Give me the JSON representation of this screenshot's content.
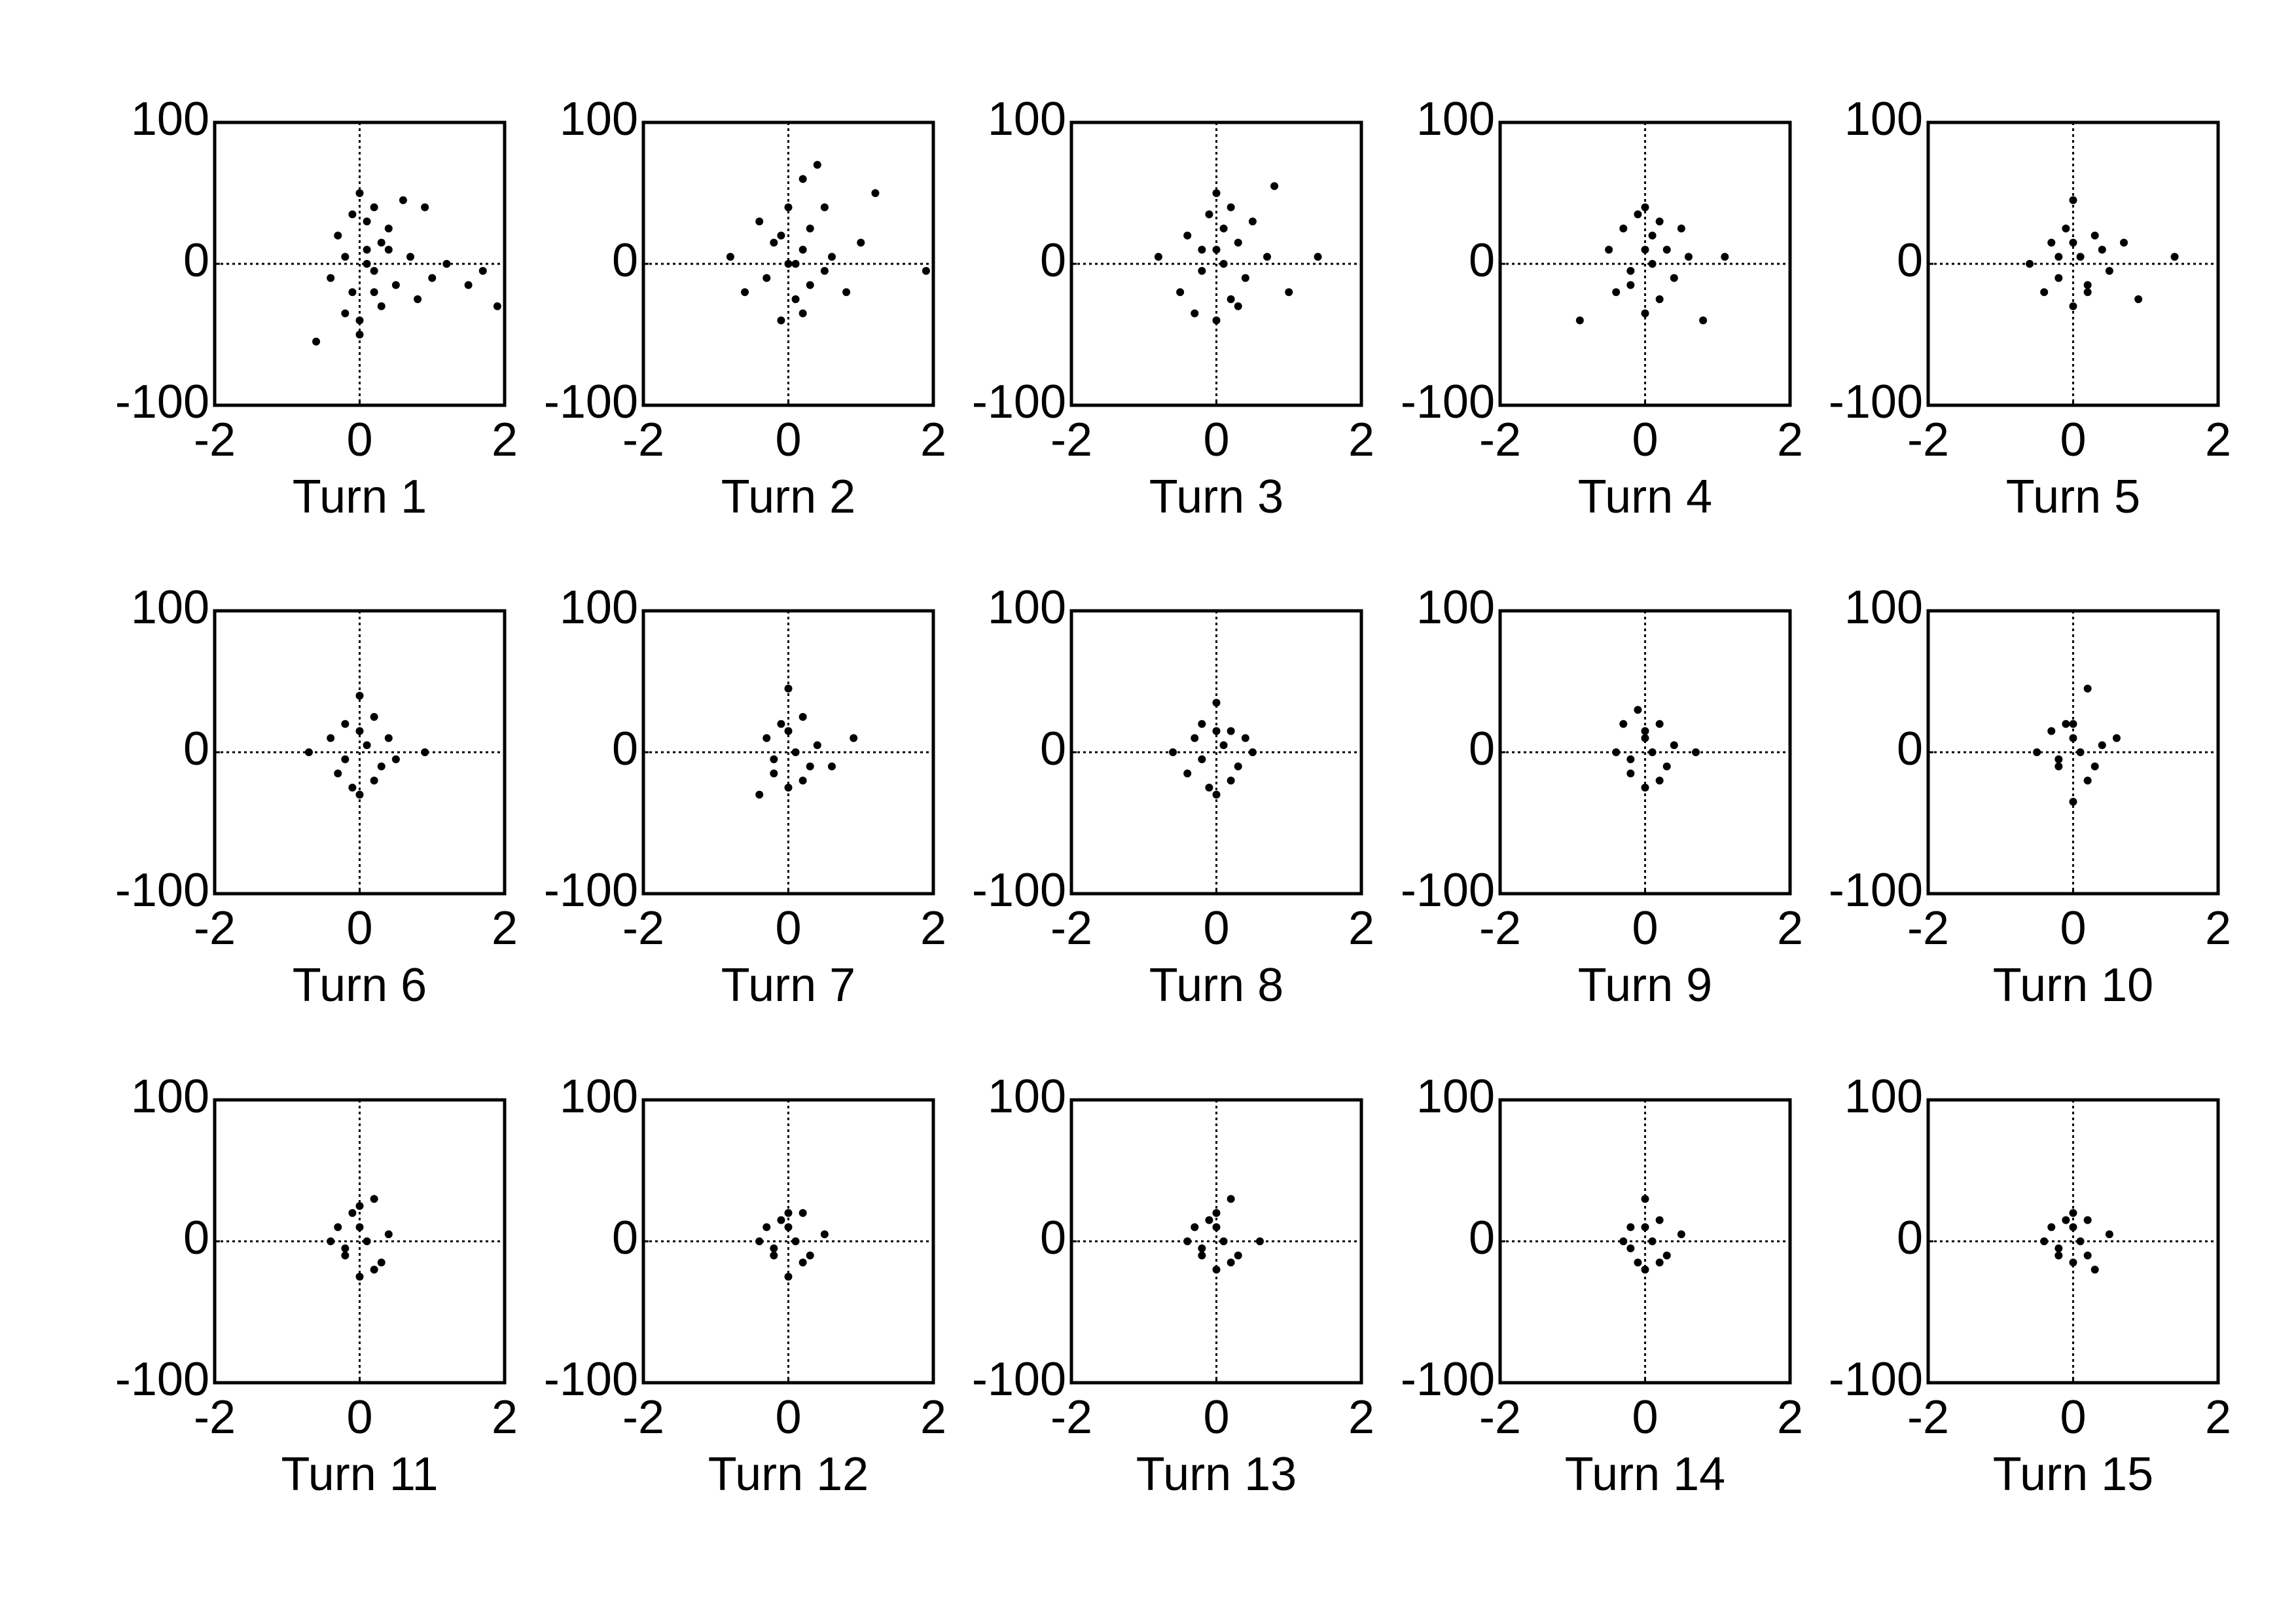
{
  "chart_data": [
    {
      "type": "scatter",
      "xlabel": "Turn 1",
      "color": "#000000",
      "zero_lines": true,
      "xlim": [
        -2,
        2
      ],
      "ylim": [
        -100,
        100
      ],
      "xticks": [
        -2,
        0,
        2
      ],
      "yticks": [
        -100,
        0,
        100
      ],
      "x": [
        -0.6,
        -0.4,
        -0.3,
        -0.2,
        -0.1,
        0,
        0,
        0.1,
        0.1,
        0.2,
        0.2,
        0.3,
        0.3,
        0.4,
        0.5,
        0.6,
        0.7,
        0.8,
        0.9,
        1.0,
        1.2,
        1.5,
        1.7,
        1.9,
        0,
        -0.1,
        0.2,
        0.4,
        0.1,
        -0.2
      ],
      "y": [
        -55,
        -10,
        20,
        5,
        -20,
        50,
        -40,
        10,
        30,
        -5,
        40,
        15,
        -30,
        25,
        -15,
        45,
        5,
        -25,
        40,
        -10,
        0,
        -15,
        -5,
        -30,
        -50,
        35,
        -20,
        10,
        0,
        -35
      ]
    },
    {
      "type": "scatter",
      "xlabel": "Turn 2",
      "color": "#000000",
      "zero_lines": true,
      "xlim": [
        -2,
        2
      ],
      "ylim": [
        -100,
        100
      ],
      "xticks": [
        -2,
        0,
        2
      ],
      "yticks": [
        -100,
        0,
        100
      ],
      "x": [
        -0.8,
        -0.6,
        -0.4,
        -0.3,
        -0.2,
        -0.1,
        0,
        0,
        0.1,
        0.2,
        0.2,
        0.3,
        0.3,
        0.4,
        0.5,
        0.6,
        0.8,
        1.0,
        1.2,
        1.9,
        0.1,
        -0.1,
        0.2,
        0.5
      ],
      "y": [
        5,
        -20,
        30,
        -10,
        15,
        -40,
        40,
        0,
        -25,
        60,
        10,
        -15,
        25,
        70,
        -5,
        5,
        -20,
        15,
        50,
        -5,
        0,
        20,
        -35,
        40
      ]
    },
    {
      "type": "scatter",
      "xlabel": "Turn 3",
      "color": "#000000",
      "zero_lines": true,
      "xlim": [
        -2,
        2
      ],
      "ylim": [
        -100,
        100
      ],
      "xticks": [
        -2,
        0,
        2
      ],
      "yticks": [
        -100,
        0,
        100
      ],
      "x": [
        -0.8,
        -0.5,
        -0.4,
        -0.3,
        -0.2,
        -0.1,
        0,
        0,
        0.1,
        0.1,
        0.2,
        0.3,
        0.4,
        0.5,
        0.7,
        0.8,
        1.0,
        1.4,
        0,
        -0.2,
        0.2,
        0.3
      ],
      "y": [
        5,
        -20,
        20,
        -35,
        10,
        35,
        50,
        -40,
        0,
        25,
        -25,
        15,
        -10,
        30,
        5,
        55,
        -20,
        5,
        10,
        -5,
        40,
        -30
      ]
    },
    {
      "type": "scatter",
      "xlabel": "Turn 4",
      "color": "#000000",
      "zero_lines": true,
      "xlim": [
        -2,
        2
      ],
      "ylim": [
        -100,
        100
      ],
      "xticks": [
        -2,
        0,
        2
      ],
      "yticks": [
        -100,
        0,
        100
      ],
      "x": [
        -0.9,
        -0.5,
        -0.4,
        -0.3,
        -0.2,
        -0.1,
        0,
        0,
        0.1,
        0.1,
        0.2,
        0.3,
        0.4,
        0.5,
        0.6,
        0.8,
        1.1,
        0,
        -0.2,
        0.2
      ],
      "y": [
        -40,
        10,
        -20,
        25,
        -5,
        35,
        40,
        -35,
        0,
        20,
        -25,
        10,
        -10,
        25,
        5,
        -40,
        5,
        10,
        -15,
        30
      ]
    },
    {
      "type": "scatter",
      "xlabel": "Turn 5",
      "color": "#000000",
      "zero_lines": true,
      "xlim": [
        -2,
        2
      ],
      "ylim": [
        -100,
        100
      ],
      "xticks": [
        -2,
        0,
        2
      ],
      "yticks": [
        -100,
        0,
        100
      ],
      "x": [
        -0.6,
        -0.4,
        -0.3,
        -0.2,
        -0.1,
        0,
        0,
        0.1,
        0.2,
        0.3,
        0.4,
        0.5,
        0.7,
        0.9,
        1.4,
        0,
        -0.2,
        0.2
      ],
      "y": [
        0,
        -20,
        15,
        -10,
        25,
        45,
        -30,
        5,
        -15,
        20,
        10,
        -5,
        15,
        -25,
        5,
        15,
        5,
        -20
      ]
    },
    {
      "type": "scatter",
      "xlabel": "Turn 6",
      "color": "#000000",
      "zero_lines": true,
      "xlim": [
        -2,
        2
      ],
      "ylim": [
        -100,
        100
      ],
      "xticks": [
        -2,
        0,
        2
      ],
      "yticks": [
        -100,
        0,
        100
      ],
      "x": [
        -0.7,
        -0.4,
        -0.3,
        -0.2,
        -0.1,
        0,
        0,
        0.1,
        0.2,
        0.3,
        0.4,
        0.5,
        0.9,
        0,
        -0.2,
        0.2
      ],
      "y": [
        0,
        10,
        -15,
        20,
        -25,
        40,
        -30,
        5,
        25,
        -10,
        10,
        -5,
        0,
        15,
        -5,
        -20
      ]
    },
    {
      "type": "scatter",
      "xlabel": "Turn 7",
      "color": "#000000",
      "zero_lines": true,
      "xlim": [
        -2,
        2
      ],
      "ylim": [
        -100,
        100
      ],
      "xticks": [
        -2,
        0,
        2
      ],
      "yticks": [
        -100,
        0,
        100
      ],
      "x": [
        -0.4,
        -0.3,
        -0.2,
        -0.1,
        0,
        0,
        0.1,
        0.2,
        0.3,
        0.4,
        0.6,
        0.9,
        0,
        -0.2,
        0.2
      ],
      "y": [
        -30,
        10,
        -15,
        20,
        45,
        -25,
        0,
        25,
        -10,
        5,
        -10,
        10,
        15,
        -5,
        -20
      ]
    },
    {
      "type": "scatter",
      "xlabel": "Turn 8",
      "color": "#000000",
      "zero_lines": true,
      "xlim": [
        -2,
        2
      ],
      "ylim": [
        -100,
        100
      ],
      "xticks": [
        -2,
        0,
        2
      ],
      "yticks": [
        -100,
        0,
        100
      ],
      "x": [
        -0.6,
        -0.4,
        -0.3,
        -0.2,
        -0.1,
        0,
        0,
        0.1,
        0.2,
        0.3,
        0.4,
        0.5,
        0,
        -0.2,
        0.2
      ],
      "y": [
        0,
        -15,
        10,
        20,
        -25,
        35,
        -30,
        5,
        15,
        -10,
        10,
        0,
        15,
        -5,
        -20
      ]
    },
    {
      "type": "scatter",
      "xlabel": "Turn 9",
      "color": "#000000",
      "zero_lines": true,
      "xlim": [
        -2,
        2
      ],
      "ylim": [
        -100,
        100
      ],
      "xticks": [
        -2,
        0,
        2
      ],
      "yticks": [
        -100,
        0,
        100
      ],
      "x": [
        -0.4,
        -0.3,
        -0.2,
        -0.1,
        0,
        0,
        0.1,
        0.2,
        0.3,
        0.4,
        0.7,
        0,
        -0.2,
        0.2
      ],
      "y": [
        0,
        20,
        -15,
        30,
        10,
        -25,
        0,
        20,
        -10,
        5,
        0,
        15,
        -5,
        -20
      ]
    },
    {
      "type": "scatter",
      "xlabel": "Turn 10",
      "color": "#000000",
      "zero_lines": true,
      "xlim": [
        -2,
        2
      ],
      "ylim": [
        -100,
        100
      ],
      "xticks": [
        -2,
        0,
        2
      ],
      "yticks": [
        -100,
        0,
        100
      ],
      "x": [
        -0.5,
        -0.3,
        -0.2,
        -0.1,
        0,
        0,
        0.1,
        0.2,
        0.3,
        0.4,
        0.6,
        0,
        -0.2,
        0.2
      ],
      "y": [
        0,
        15,
        -10,
        20,
        -35,
        10,
        0,
        45,
        -10,
        5,
        10,
        20,
        -5,
        -20
      ]
    },
    {
      "type": "scatter",
      "xlabel": "Turn 11",
      "color": "#000000",
      "zero_lines": true,
      "xlim": [
        -2,
        2
      ],
      "ylim": [
        -100,
        100
      ],
      "xticks": [
        -2,
        0,
        2
      ],
      "yticks": [
        -100,
        0,
        100
      ],
      "x": [
        -0.4,
        -0.3,
        -0.2,
        -0.1,
        0,
        0,
        0.1,
        0.2,
        0.3,
        0.4,
        0,
        -0.2,
        0.2
      ],
      "y": [
        0,
        10,
        -10,
        20,
        25,
        -25,
        0,
        30,
        -15,
        5,
        10,
        -5,
        -20
      ]
    },
    {
      "type": "scatter",
      "xlabel": "Turn 12",
      "color": "#000000",
      "zero_lines": true,
      "xlim": [
        -2,
        2
      ],
      "ylim": [
        -100,
        100
      ],
      "xticks": [
        -2,
        0,
        2
      ],
      "yticks": [
        -100,
        0,
        100
      ],
      "x": [
        -0.4,
        -0.3,
        -0.2,
        -0.1,
        0,
        0,
        0.1,
        0.2,
        0.3,
        0.5,
        0,
        -0.2,
        0.2
      ],
      "y": [
        0,
        10,
        -10,
        15,
        20,
        -25,
        0,
        20,
        -10,
        5,
        10,
        -5,
        -15
      ]
    },
    {
      "type": "scatter",
      "xlabel": "Turn 13",
      "color": "#000000",
      "zero_lines": true,
      "xlim": [
        -2,
        2
      ],
      "ylim": [
        -100,
        100
      ],
      "xticks": [
        -2,
        0,
        2
      ],
      "yticks": [
        -100,
        0,
        100
      ],
      "x": [
        -0.4,
        -0.3,
        -0.2,
        -0.1,
        0,
        0,
        0.1,
        0.2,
        0.3,
        0.6,
        0,
        -0.2,
        0.2
      ],
      "y": [
        0,
        10,
        -10,
        15,
        20,
        -20,
        0,
        30,
        -10,
        0,
        10,
        -5,
        -15
      ]
    },
    {
      "type": "scatter",
      "xlabel": "Turn 14",
      "color": "#000000",
      "zero_lines": true,
      "xlim": [
        -2,
        2
      ],
      "ylim": [
        -100,
        100
      ],
      "xticks": [
        -2,
        0,
        2
      ],
      "yticks": [
        -100,
        0,
        100
      ],
      "x": [
        -0.3,
        -0.2,
        -0.1,
        0,
        0,
        0.1,
        0.2,
        0.3,
        0.5,
        0,
        -0.2,
        0.2
      ],
      "y": [
        0,
        10,
        -15,
        30,
        -20,
        0,
        15,
        -10,
        5,
        10,
        -5,
        -15
      ]
    },
    {
      "type": "scatter",
      "xlabel": "Turn 15",
      "color": "#000000",
      "zero_lines": true,
      "xlim": [
        -2,
        2
      ],
      "ylim": [
        -100,
        100
      ],
      "xticks": [
        -2,
        0,
        2
      ],
      "yticks": [
        -100,
        0,
        100
      ],
      "x": [
        -0.4,
        -0.3,
        -0.2,
        -0.1,
        0,
        0,
        0.1,
        0.2,
        0.3,
        0.5,
        0,
        -0.2,
        0.2
      ],
      "y": [
        0,
        10,
        -10,
        15,
        20,
        -15,
        0,
        15,
        -20,
        5,
        10,
        -5,
        -10
      ]
    }
  ]
}
